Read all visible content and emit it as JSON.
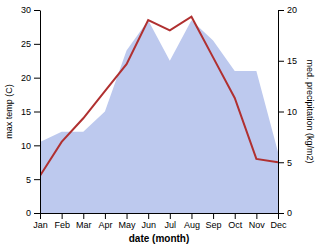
{
  "chart_data": {
    "type": "line",
    "xlabel": "date (month)",
    "ylabel": "max temp (C)",
    "y2label": "med. precipitation (kg/m2)",
    "categories": [
      "Jan",
      "Feb",
      "Mar",
      "Apr",
      "May",
      "Jun",
      "Jul",
      "Aug",
      "Sep",
      "Oct",
      "Nov",
      "Dec"
    ],
    "series": [
      {
        "type": "area",
        "axis": "y2",
        "color": "#bdc9ee",
        "values": [
          7.0,
          8.0,
          8.0,
          10.0,
          16.0,
          19.0,
          15.0,
          19.0,
          17.0,
          14.0,
          14.0,
          6.0
        ]
      },
      {
        "type": "line",
        "color": "#b03030",
        "values": [
          5.5,
          10.5,
          14.0,
          18.0,
          22.0,
          28.5,
          27.0,
          29.0,
          23.0,
          17.0,
          8.0,
          7.5
        ]
      }
    ],
    "ylim": [
      0,
      30
    ],
    "yticks": [
      0,
      5,
      10,
      15,
      20,
      25,
      30
    ],
    "y2lim": [
      0,
      20
    ],
    "y2ticks": [
      0,
      5,
      10,
      15,
      20
    ]
  }
}
